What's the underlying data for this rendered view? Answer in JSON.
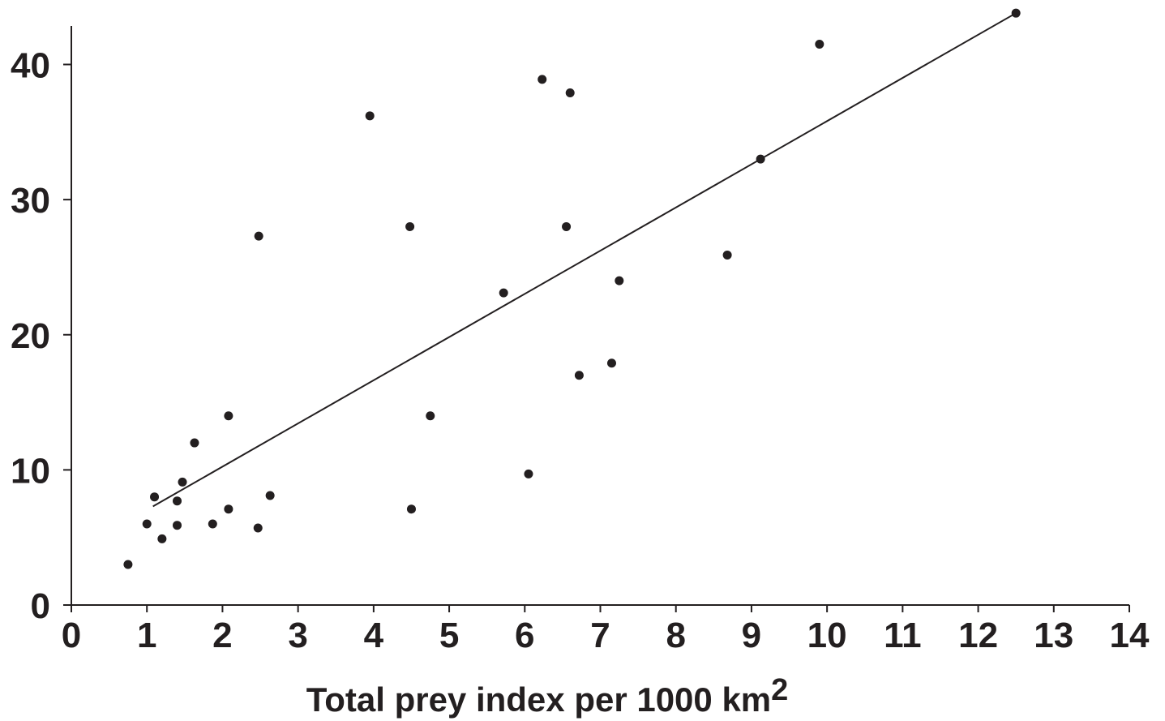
{
  "chart_data": {
    "type": "scatter",
    "title": "",
    "xlabel": "Total prey index per 1000 km",
    "xlabel_superscript": "2",
    "ylabel": "",
    "xlim": [
      0,
      14
    ],
    "ylim": [
      0,
      43
    ],
    "x_ticks": [
      0,
      1,
      2,
      3,
      4,
      5,
      6,
      7,
      8,
      9,
      10,
      11,
      12,
      13,
      14
    ],
    "y_ticks": [
      0,
      10,
      20,
      30,
      40
    ],
    "grid": false,
    "legend": "none",
    "marker_color": "#231f20",
    "line_color": "#231f20",
    "points": [
      {
        "x": 0.75,
        "y": 3.0
      },
      {
        "x": 1.0,
        "y": 6.0
      },
      {
        "x": 1.1,
        "y": 8.0
      },
      {
        "x": 1.2,
        "y": 4.9
      },
      {
        "x": 1.4,
        "y": 5.9
      },
      {
        "x": 1.4,
        "y": 7.7
      },
      {
        "x": 1.47,
        "y": 9.1
      },
      {
        "x": 1.63,
        "y": 12.0
      },
      {
        "x": 1.87,
        "y": 6.0
      },
      {
        "x": 2.08,
        "y": 7.1
      },
      {
        "x": 2.08,
        "y": 14.0
      },
      {
        "x": 2.47,
        "y": 5.7
      },
      {
        "x": 2.48,
        "y": 27.3
      },
      {
        "x": 2.63,
        "y": 8.1
      },
      {
        "x": 3.95,
        "y": 36.2
      },
      {
        "x": 4.48,
        "y": 28.0
      },
      {
        "x": 4.5,
        "y": 7.1
      },
      {
        "x": 4.75,
        "y": 14.0
      },
      {
        "x": 5.72,
        "y": 23.1
      },
      {
        "x": 6.05,
        "y": 9.7
      },
      {
        "x": 6.23,
        "y": 38.9
      },
      {
        "x": 6.55,
        "y": 28.0
      },
      {
        "x": 6.6,
        "y": 37.9
      },
      {
        "x": 6.72,
        "y": 17.0
      },
      {
        "x": 7.15,
        "y": 17.9
      },
      {
        "x": 7.25,
        "y": 24.0
      },
      {
        "x": 8.68,
        "y": 25.9
      },
      {
        "x": 9.12,
        "y": 33.0
      },
      {
        "x": 9.9,
        "y": 41.5
      },
      {
        "x": 12.5,
        "y": 43.8
      }
    ],
    "trend_line": {
      "x": [
        1.08,
        12.5
      ],
      "y": [
        7.3,
        43.8
      ]
    }
  }
}
